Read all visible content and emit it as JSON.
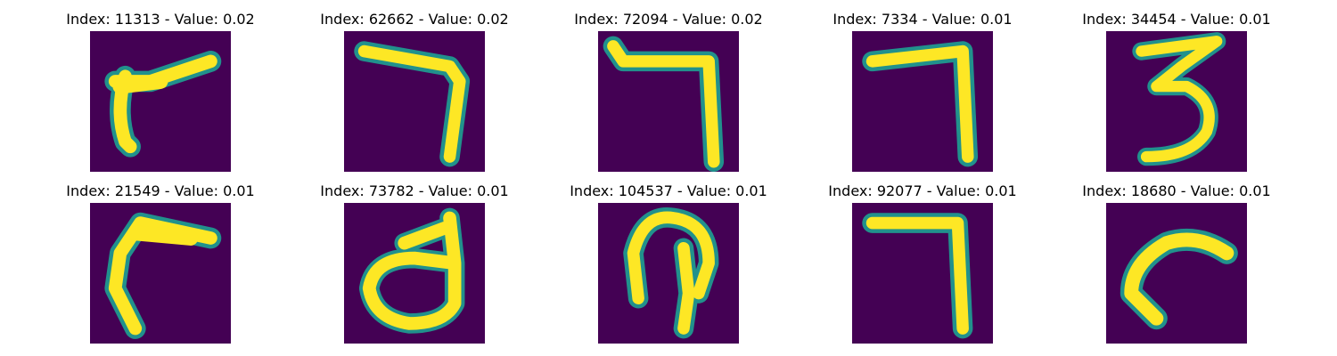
{
  "panels": [
    {
      "title": "Index: 11313 - Value: 0.02",
      "digit_icon": "stroke-hook-left-icon"
    },
    {
      "title": "Index: 62662 - Value: 0.02",
      "digit_icon": "digit-7-icon"
    },
    {
      "title": "Index: 72094 - Value: 0.02",
      "digit_icon": "digit-7-icon"
    },
    {
      "title": "Index: 7334 - Value: 0.01",
      "digit_icon": "digit-7-icon"
    },
    {
      "title": "Index: 34454 - Value: 0.01",
      "digit_icon": "digit-3-icon"
    },
    {
      "title": "Index: 21549 - Value: 0.01",
      "digit_icon": "stroke-hook-left-icon"
    },
    {
      "title": "Index: 73782 - Value: 0.01",
      "digit_icon": "loop-glyph-icon"
    },
    {
      "title": "Index: 104537 - Value: 0.01",
      "digit_icon": "loop-glyph-icon"
    },
    {
      "title": "Index: 92077 - Value: 0.01",
      "digit_icon": "digit-7-icon"
    },
    {
      "title": "Index: 18680 - Value: 0.01",
      "digit_icon": "stroke-hook-left-icon"
    }
  ],
  "colors": {
    "background": "#440154",
    "edge": "#21918c",
    "stroke": "#fde725"
  }
}
